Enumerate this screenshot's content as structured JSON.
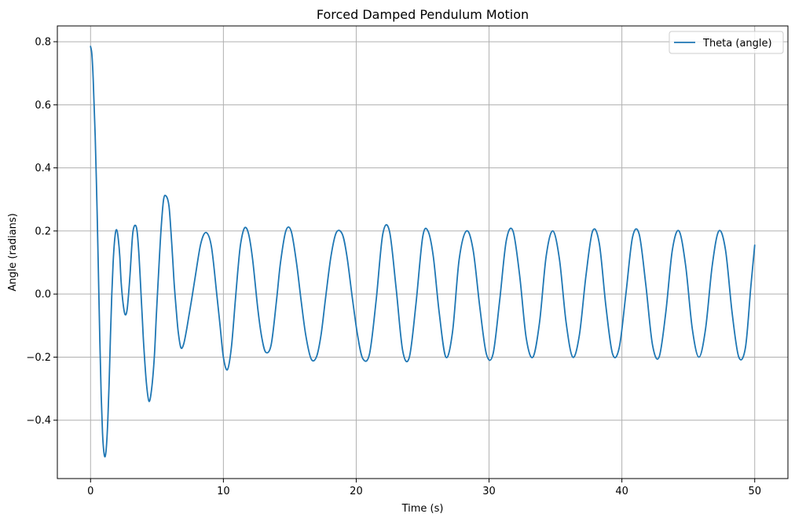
{
  "chart_data": {
    "type": "line",
    "title": "Forced Damped Pendulum Motion",
    "xlabel": "Time (s)",
    "ylabel": "Angle (radians)",
    "xlim": [
      -2.5,
      52.5
    ],
    "ylim": [
      -0.585,
      0.85
    ],
    "xticks": [
      0,
      10,
      20,
      30,
      40,
      50
    ],
    "yticks": [
      -0.4,
      -0.2,
      0.0,
      0.2,
      0.4,
      0.6,
      0.8
    ],
    "xtick_labels": [
      "0",
      "10",
      "20",
      "30",
      "40",
      "50"
    ],
    "ytick_labels": [
      "−0.4",
      "−0.2",
      "0.0",
      "0.2",
      "0.4",
      "0.6",
      "0.8"
    ],
    "grid": true,
    "legend_position": "upper-right",
    "line_color": "#1f77b4",
    "series": [
      {
        "name": "Theta (angle)",
        "x": [
          0.0,
          0.1,
          0.2,
          0.35,
          0.5,
          0.6,
          0.7,
          0.8,
          0.9,
          1.0,
          1.1,
          1.2,
          1.3,
          1.4,
          1.5,
          1.6,
          1.7,
          1.8,
          1.9,
          2.0,
          2.1,
          2.2,
          2.3,
          2.45,
          2.6,
          2.75,
          2.9,
          3.0,
          3.1,
          3.2,
          3.35,
          3.5,
          3.65,
          3.8,
          3.9,
          4.0,
          4.2,
          4.4,
          4.6,
          4.8,
          4.95,
          5.1,
          5.3,
          5.5,
          5.7,
          5.9,
          6.05,
          6.2,
          6.3,
          6.45,
          6.6,
          6.8,
          7.0,
          7.2,
          7.4,
          7.6,
          7.9,
          8.3,
          8.7,
          9.1,
          9.5,
          9.75,
          10.0,
          10.3,
          10.6,
          10.9,
          11.1,
          11.3,
          11.6,
          11.9,
          12.2,
          12.6,
          12.9,
          13.2,
          13.6,
          14.0,
          14.3,
          14.7,
          15.1,
          15.5,
          15.85,
          16.2,
          16.6,
          17.0,
          17.35,
          17.7,
          18.1,
          18.5,
          18.95,
          19.3,
          19.7,
          20.1,
          20.5,
          21.0,
          21.5,
          22.0,
          22.5,
          23.0,
          23.5,
          24.0,
          24.5,
          25.0,
          25.4,
          25.8,
          26.25,
          26.75,
          27.25,
          27.75,
          28.3,
          28.8,
          29.3,
          29.8,
          30.3,
          30.8,
          31.3,
          31.8,
          32.3,
          32.8,
          33.3,
          33.8,
          34.3,
          34.8,
          35.3,
          35.8,
          36.3,
          36.8,
          37.3,
          37.8,
          38.3,
          38.8,
          39.3,
          39.8,
          40.3,
          40.8,
          41.3,
          41.8,
          42.3,
          42.8,
          43.3,
          43.8,
          44.3,
          44.8,
          45.3,
          45.8,
          46.3,
          46.8,
          47.3,
          47.8,
          48.3,
          48.8,
          49.3,
          49.7,
          50.0
        ],
        "y": [
          0.785,
          0.76,
          0.68,
          0.5,
          0.25,
          0.05,
          -0.15,
          -0.32,
          -0.44,
          -0.5,
          -0.515,
          -0.48,
          -0.4,
          -0.28,
          -0.13,
          0.0,
          0.1,
          0.165,
          0.2,
          0.2,
          0.17,
          0.12,
          0.04,
          -0.03,
          -0.065,
          -0.05,
          0.02,
          0.08,
          0.15,
          0.2,
          0.218,
          0.2,
          0.12,
          0.0,
          -0.08,
          -0.16,
          -0.28,
          -0.34,
          -0.3,
          -0.2,
          -0.07,
          0.05,
          0.2,
          0.3,
          0.31,
          0.28,
          0.2,
          0.1,
          0.03,
          -0.05,
          -0.12,
          -0.17,
          -0.16,
          -0.12,
          -0.07,
          -0.02,
          0.06,
          0.16,
          0.195,
          0.15,
          0.0,
          -0.1,
          -0.2,
          -0.24,
          -0.17,
          -0.02,
          0.08,
          0.16,
          0.21,
          0.19,
          0.11,
          -0.05,
          -0.14,
          -0.185,
          -0.16,
          -0.02,
          0.1,
          0.2,
          0.2,
          0.1,
          -0.02,
          -0.13,
          -0.205,
          -0.2,
          -0.13,
          -0.01,
          0.12,
          0.195,
          0.19,
          0.12,
          -0.01,
          -0.13,
          -0.205,
          -0.19,
          -0.02,
          0.19,
          0.2,
          0.02,
          -0.18,
          -0.2,
          -0.03,
          0.18,
          0.2,
          0.12,
          -0.06,
          -0.2,
          -0.12,
          0.11,
          0.2,
          0.14,
          -0.04,
          -0.19,
          -0.19,
          -0.02,
          0.17,
          0.2,
          0.06,
          -0.14,
          -0.2,
          -0.09,
          0.12,
          0.2,
          0.11,
          -0.09,
          -0.2,
          -0.13,
          0.06,
          0.2,
          0.16,
          -0.04,
          -0.19,
          -0.17,
          0.0,
          0.18,
          0.19,
          0.03,
          -0.16,
          -0.2,
          -0.06,
          0.14,
          0.2,
          0.09,
          -0.11,
          -0.2,
          -0.11,
          0.09,
          0.2,
          0.14,
          -0.06,
          -0.2,
          -0.17,
          0.02,
          0.155
        ]
      }
    ]
  }
}
